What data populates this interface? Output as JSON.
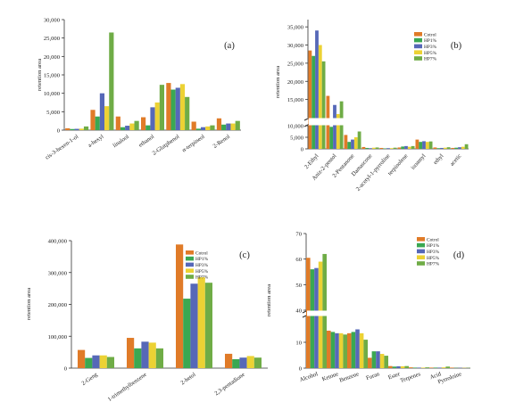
{
  "series_names": [
    "Cotrol",
    "HP1%",
    "HP3%",
    "HP5%",
    "HP7%"
  ],
  "series_colors": [
    "#e07b28",
    "#3aa852",
    "#5668b8",
    "#ecd234",
    "#6fac46"
  ],
  "chart_data": [
    {
      "type": "bar",
      "panel_label": "(a)",
      "ylabel": "retention area",
      "ylim": [
        0,
        30000
      ],
      "yticks": [
        0,
        5000,
        10000,
        15000,
        20000,
        25000,
        30000
      ],
      "ytick_labels": [
        "0",
        "5,000",
        "10,000",
        "15,000",
        "20,000",
        "25,000",
        "30,000"
      ],
      "legend_position": "none",
      "categories": [
        "cis-3-hexen-1-ol",
        "a-hexyl",
        "linalool",
        "ethanol",
        "2-Glutphenol",
        "α-terpineol",
        "2-Renol"
      ],
      "series": [
        {
          "name": "Cotrol",
          "values": [
            500,
            5500,
            3700,
            3500,
            12800,
            2300,
            3200
          ]
        },
        {
          "name": "HP1%",
          "values": [
            300,
            3700,
            800,
            1300,
            11000,
            400,
            1500
          ]
        },
        {
          "name": "HP3%",
          "values": [
            350,
            10000,
            1200,
            6200,
            11500,
            800,
            1800
          ]
        },
        {
          "name": "HP5%",
          "values": [
            400,
            6500,
            1800,
            7500,
            12500,
            1000,
            1800
          ]
        },
        {
          "name": "HP7%",
          "values": [
            1000,
            26500,
            2500,
            12300,
            9000,
            1300,
            2500
          ]
        }
      ]
    },
    {
      "type": "bar",
      "panel_label": "(b)",
      "ylabel": "retention area",
      "broken_axis": true,
      "lower_range": [
        0,
        10000
      ],
      "upper_range": [
        10000,
        37000
      ],
      "yticks_lower": [
        0,
        5000
      ],
      "ytick_labels_lower": [
        "0",
        "5,000"
      ],
      "yticks_upper": [
        10000,
        15000,
        20000,
        25000,
        30000,
        35000
      ],
      "ytick_labels_upper": [
        "10,000",
        "15,000",
        "20,000",
        "25,000",
        "30,000",
        "35,000"
      ],
      "legend_position": "top-right",
      "categories": [
        "2-Ethyl",
        "Aniz-2-pentol",
        "2-Pentanone",
        "Damascone",
        "2-acetyl-1-pyrroline",
        "terpinolene",
        "isoamyl",
        "ethyl",
        "acetic"
      ],
      "series": [
        {
          "name": "Cotrol",
          "values": [
            28500,
            16000,
            6000,
            800,
            400,
            600,
            4000,
            600,
            400
          ]
        },
        {
          "name": "HP1%",
          "values": [
            27000,
            9500,
            3000,
            400,
            200,
            1000,
            3000,
            300,
            500
          ]
        },
        {
          "name": "HP3%",
          "values": [
            34000,
            13500,
            4000,
            300,
            300,
            1200,
            3300,
            400,
            700
          ]
        },
        {
          "name": "HP5%",
          "values": [
            30000,
            11000,
            5000,
            500,
            300,
            900,
            3000,
            500,
            900
          ]
        },
        {
          "name": "HP7%",
          "values": [
            25500,
            14500,
            7500,
            600,
            500,
            1200,
            3200,
            700,
            2000
          ]
        }
      ]
    },
    {
      "type": "bar",
      "panel_label": "(c)",
      "ylabel": "retention area",
      "ylim": [
        0,
        400000
      ],
      "yticks": [
        0,
        100000,
        200000,
        300000,
        400000
      ],
      "ytick_labels": [
        "0",
        "100,000",
        "200,000",
        "300,000",
        "400,000"
      ],
      "legend_position": "top-right",
      "categories": [
        "2-Geng",
        "1-trimethylbenzene",
        "2-hetol",
        "2,3-pentadione"
      ],
      "series": [
        {
          "name": "Cotrol",
          "values": [
            57000,
            95000,
            388000,
            45000
          ]
        },
        {
          "name": "HP1%",
          "values": [
            32000,
            62000,
            218000,
            28000
          ]
        },
        {
          "name": "HP3%",
          "values": [
            40000,
            83000,
            265000,
            33000
          ]
        },
        {
          "name": "HP5%",
          "values": [
            40000,
            80000,
            285000,
            38000
          ]
        },
        {
          "name": "HP7%",
          "values": [
            35000,
            62000,
            268000,
            33000
          ]
        }
      ]
    },
    {
      "type": "bar",
      "panel_label": "(d)",
      "ylabel": "retention area",
      "broken_axis": true,
      "lower_range": [
        0,
        20
      ],
      "upper_range": [
        40,
        70
      ],
      "yticks_lower": [
        0,
        10
      ],
      "ytick_labels_lower": [
        "0",
        "10"
      ],
      "yticks_upper": [
        40,
        50,
        60,
        70
      ],
      "ytick_labels_upper": [
        "40",
        "50",
        "60",
        "70"
      ],
      "legend_position": "top-right",
      "categories": [
        "Alcohol",
        "Ketone",
        "Benzene",
        "Furan",
        "Ester",
        "Terpenes",
        "Acid",
        "Pyrroloine"
      ],
      "series": [
        {
          "name": "Cotrol",
          "values": [
            60.5,
            14.5,
            13.5,
            4.0,
            0.8,
            0.3,
            0.2,
            0.2
          ]
        },
        {
          "name": "HP1%",
          "values": [
            56.0,
            14.0,
            14.0,
            6.5,
            0.6,
            0.2,
            0.2,
            0.1
          ]
        },
        {
          "name": "HP3%",
          "values": [
            56.5,
            13.5,
            15.0,
            6.5,
            0.7,
            0.2,
            0.2,
            0.1
          ]
        },
        {
          "name": "HP5%",
          "values": [
            59.0,
            13.5,
            13.5,
            5.5,
            0.7,
            0.2,
            0.3,
            0.1
          ]
        },
        {
          "name": "HP7%",
          "values": [
            62.0,
            13.0,
            11.0,
            4.8,
            0.8,
            0.3,
            0.6,
            0.1
          ]
        }
      ]
    }
  ]
}
